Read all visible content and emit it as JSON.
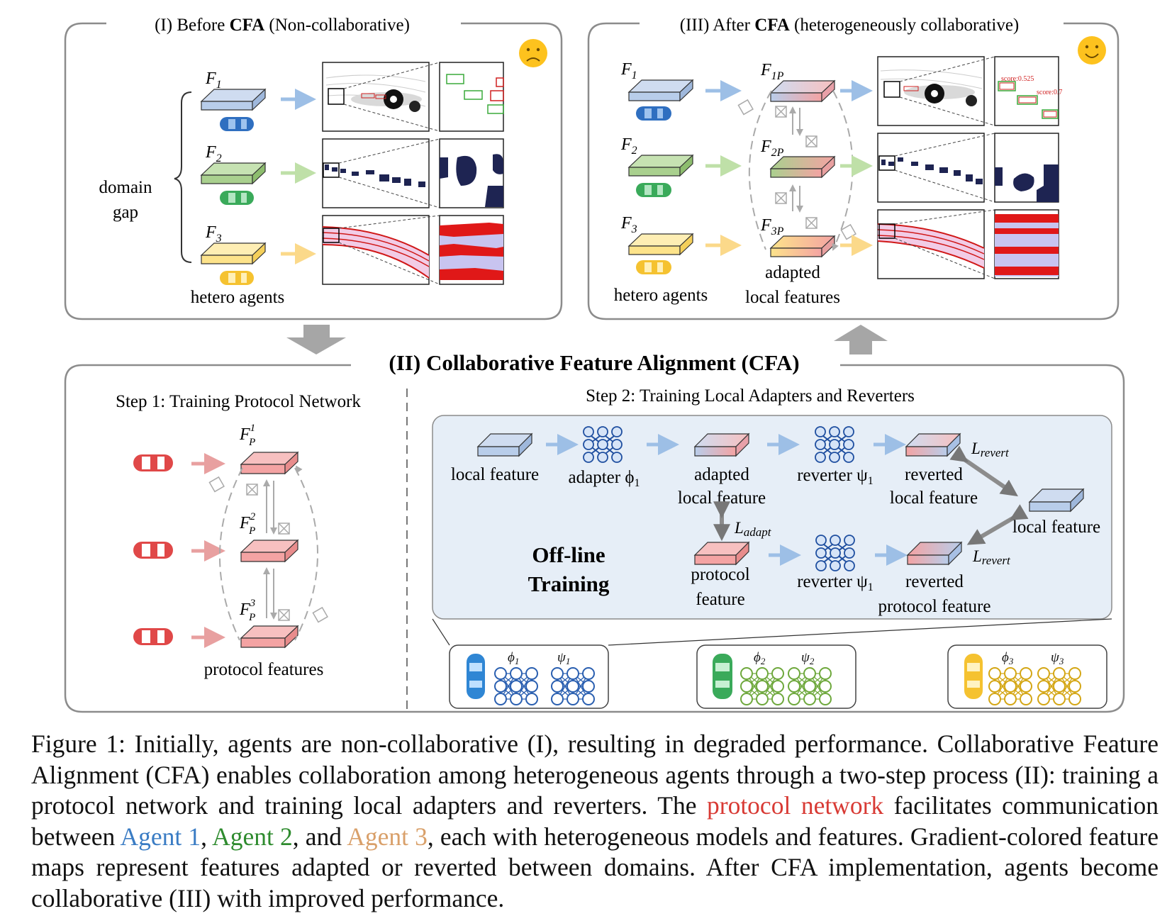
{
  "panel1": {
    "prefix": "(I)  Before ",
    "bold": "CFA",
    "suffix": " (Non-collaborative)",
    "features": [
      "F",
      "F",
      "F"
    ],
    "feature_subs": [
      "1",
      "2",
      "3"
    ],
    "domain_gap_line1": "domain",
    "domain_gap_line2": "gap",
    "agents_label": "hetero agents"
  },
  "panel3": {
    "prefix": "(III)  After ",
    "bold": "CFA",
    "suffix": " (heterogeneously collaborative)",
    "features": [
      "F",
      "F",
      "F"
    ],
    "feature_subs": [
      "1",
      "2",
      "3"
    ],
    "proto_features": [
      "F",
      "F",
      "F"
    ],
    "proto_subs": [
      "1P",
      "2P",
      "3P"
    ],
    "agents_label": "hetero agents",
    "adapted_line1": "adapted",
    "adapted_line2": "local features",
    "score_labels": [
      "score:0.525",
      "score:0.7"
    ]
  },
  "panel2": {
    "title": "(II)  Collaborative Feature Alignment (CFA)",
    "step1": "Step 1: Training Protocol Network",
    "step2": "Step 2: Training Local Adapters and Reverters",
    "step1_features": [
      "F",
      "F",
      "F"
    ],
    "step1_subs": [
      "P",
      "P",
      "P"
    ],
    "step1_sups": [
      "1",
      "2",
      "3"
    ],
    "protocol_features": "protocol features",
    "local_feature": "local feature",
    "adapter": "adapter ϕ",
    "adapter_sub": "1",
    "adapted_line1": "adapted",
    "adapted_line2": "local feature",
    "reverter": "reverter ψ",
    "reverter_sub": "1",
    "reverted_line1": "reverted",
    "reverted_line2": "local feature",
    "local_feature_right": "local feature",
    "l_revert": "L",
    "l_revert_sub": "revert",
    "l_adapt": "L",
    "l_adapt_sub": "adapt",
    "offline_line1": "Off-line",
    "offline_line2": "Training",
    "protocol_line1": "protocol",
    "protocol_line2": "feature",
    "reverter2": "reverter ψ",
    "reverter2_sub": "1",
    "reverted_proto_line1": "reverted",
    "reverted_proto_line2": "protocol feature",
    "agents": [
      {
        "phi": "ϕ",
        "psi": "ψ",
        "sub": "1",
        "color": "#2a5fb0"
      },
      {
        "phi": "ϕ",
        "psi": "ψ",
        "sub": "2",
        "color": "#6ea83c"
      },
      {
        "phi": "ϕ",
        "psi": "ψ",
        "sub": "3",
        "color": "#d4a614"
      }
    ]
  },
  "caption": {
    "part1": "Figure 1: Initially, agents are non-collaborative (I), resulting in degraded performance. Collaborative Feature Alignment (CFA) enables collaboration among heterogeneous agents through a two-step process (II): training a protocol network and training local adapters and reverters.  The ",
    "protocol": "protocol network",
    "part2": " facilitates communication between ",
    "agent1": "Agent 1",
    "sep1": ", ",
    "agent2": "Agent 2",
    "sep2": ", and ",
    "agent3": "Agent 3",
    "part3": ", each with heterogeneous models and features. Gradient-colored feature maps represent features adapted or reverted between domains. After CFA implementation, agents become collaborative (III) with improved performance."
  },
  "colors": {
    "blue_feature": "#b8cdea",
    "green_feature": "#a9d08e",
    "yellow_feature": "#fde38a",
    "red_feature": "#f4a3a3",
    "arrow": "#9dbfe6",
    "protocol_red": "#d83a34",
    "agent1": "#3a7cc4",
    "agent2": "#2e8b2e",
    "agent3": "#d9a06a"
  }
}
